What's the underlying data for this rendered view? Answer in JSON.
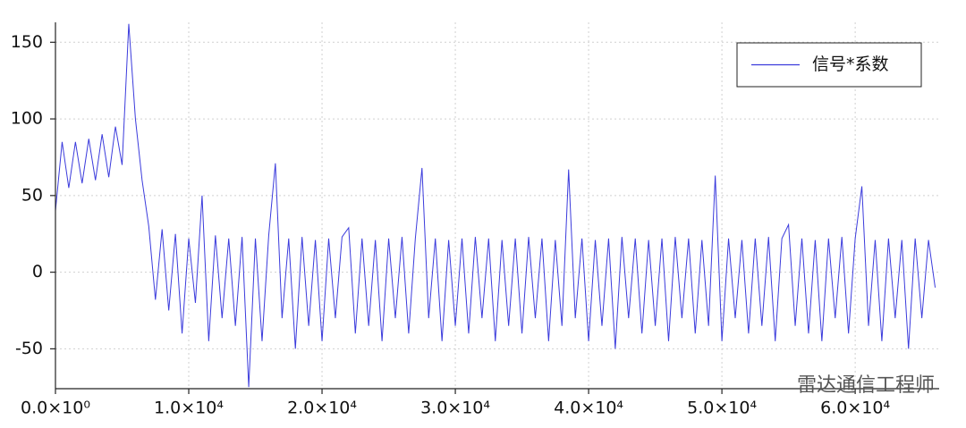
{
  "chart_data": {
    "type": "line",
    "x": [
      0,
      500,
      1000,
      1500,
      2000,
      2500,
      3000,
      3500,
      4000,
      4500,
      5000,
      5500,
      6000,
      6500,
      7000,
      7500,
      8000,
      8500,
      9000,
      9500,
      10000,
      10500,
      11000,
      11500,
      12000,
      12500,
      13000,
      13500,
      14000,
      14500,
      15000,
      15500,
      16000,
      16500,
      17000,
      17500,
      18000,
      18500,
      19000,
      19500,
      20000,
      20500,
      21000,
      21500,
      22000,
      22500,
      23000,
      23500,
      24000,
      24500,
      25000,
      25500,
      26000,
      26500,
      27000,
      27500,
      28000,
      28500,
      29000,
      29500,
      30000,
      30500,
      31000,
      31500,
      32000,
      32500,
      33000,
      33500,
      34000,
      34500,
      35000,
      35500,
      36000,
      36500,
      37000,
      37500,
      38000,
      38500,
      39000,
      39500,
      40000,
      40500,
      41000,
      41500,
      42000,
      42500,
      43000,
      43500,
      44000,
      44500,
      45000,
      45500,
      46000,
      46500,
      47000,
      47500,
      48000,
      48500,
      49000,
      49500,
      50000,
      50500,
      51000,
      51500,
      52000,
      52500,
      53000,
      53500,
      54000,
      54500,
      55000,
      55500,
      56000,
      56500,
      57000,
      57500,
      58000,
      58500,
      59000,
      59500,
      60000,
      60500,
      61000,
      61500,
      62000,
      62500,
      63000,
      63500,
      64000,
      64500,
      65000,
      65500,
      66000
    ],
    "series": [
      {
        "name": "信号*系数",
        "color": "#3b3bdc",
        "values": [
          40,
          85,
          55,
          85,
          58,
          87,
          60,
          90,
          62,
          95,
          70,
          162,
          100,
          60,
          30,
          -18,
          28,
          -25,
          25,
          -40,
          22,
          -20,
          50,
          -45,
          24,
          -30,
          22,
          -35,
          23,
          -75,
          22,
          -45,
          24,
          71,
          -30,
          22,
          -50,
          23,
          -35,
          21,
          -45,
          22,
          -30,
          23,
          29,
          -40,
          22,
          -35,
          21,
          -45,
          22,
          -30,
          23,
          -40,
          22,
          68,
          -30,
          22,
          -45,
          21,
          -35,
          22,
          -40,
          23,
          -30,
          22,
          -45,
          21,
          -35,
          22,
          -40,
          23,
          -30,
          22,
          -45,
          21,
          -35,
          67,
          -30,
          22,
          -45,
          21,
          -35,
          22,
          -50,
          23,
          -30,
          22,
          -40,
          21,
          -35,
          22,
          -45,
          23,
          -30,
          22,
          -40,
          21,
          -35,
          63,
          -45,
          22,
          -30,
          21,
          -40,
          22,
          -35,
          23,
          -45,
          22,
          31,
          -35,
          22,
          -40,
          21,
          -45,
          22,
          -30,
          23,
          -40,
          22,
          56,
          -35,
          21,
          -45,
          22,
          -30,
          21,
          -50,
          22,
          -30,
          21,
          -10
        ]
      }
    ],
    "xlim": [
      0,
      66300
    ],
    "ylim": [
      -76,
      163
    ],
    "xticks": [
      {
        "value": 0,
        "label": "0.0×10⁰"
      },
      {
        "value": 10000,
        "label": "1.0×10⁴"
      },
      {
        "value": 20000,
        "label": "2.0×10⁴"
      },
      {
        "value": 30000,
        "label": "3.0×10⁴"
      },
      {
        "value": 40000,
        "label": "4.0×10⁴"
      },
      {
        "value": 50000,
        "label": "5.0×10⁴"
      },
      {
        "value": 60000,
        "label": "6.0×10⁴"
      }
    ],
    "yticks": [
      -50,
      0,
      50,
      100,
      150
    ],
    "grid": true,
    "legend": "top-right",
    "annotation": "雷达通信工程师"
  }
}
